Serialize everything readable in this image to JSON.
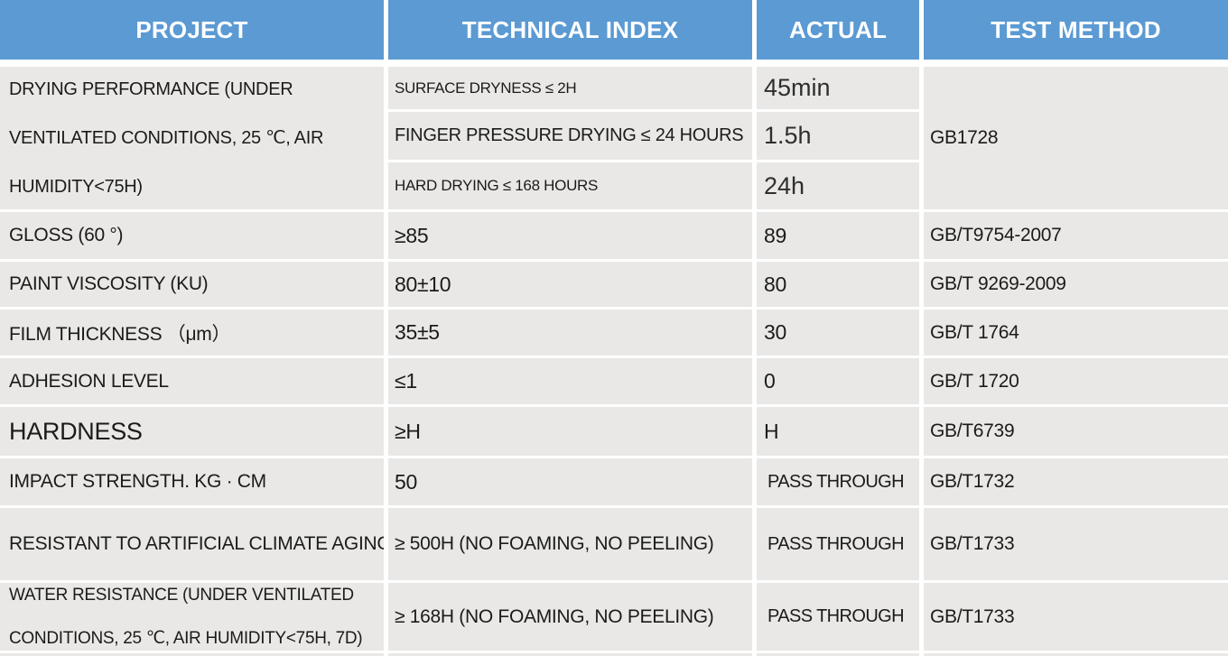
{
  "table": {
    "headers": [
      "PROJECT",
      "TECHNICAL INDEX",
      "ACTUAL",
      "TEST METHOD"
    ],
    "drying_block": {
      "project": "DRYING PERFORMANCE (UNDER VENTILATED CONDITIONS, 25 ℃, AIR HUMIDITY<75H)",
      "method": "GB1728",
      "sub_rows": [
        {
          "index": "SURFACE DRYNESS ≤ 2H",
          "actual": "45min"
        },
        {
          "index": "FINGER PRESSURE DRYING ≤ 24 HOURS",
          "actual": "1.5h"
        },
        {
          "index": "HARD DRYING ≤ 168 HOURS",
          "actual": "24h"
        }
      ]
    },
    "rows": [
      {
        "project": "GLOSS (60 °)",
        "index": "≥85",
        "actual": "89",
        "method": "GB/T9754-2007"
      },
      {
        "project": "PAINT VISCOSITY (KU)",
        "index": "80±10",
        "actual": "80",
        "method": "GB/T 9269-2009"
      },
      {
        "project": "FILM THICKNESS （μm）",
        "index": "35±5",
        "actual": "30",
        "method": "GB/T 1764"
      },
      {
        "project": "ADHESION LEVEL",
        "index": "≤1",
        "actual": "0",
        "method": "GB/T 1720"
      },
      {
        "project": "HARDNESS",
        "index": "≥H",
        "actual": "H",
        "method": "GB/T6739"
      },
      {
        "project": "IMPACT STRENGTH. KG · CM",
        "index": "50",
        "actual": "PASS THROUGH",
        "method": "GB/T1732"
      },
      {
        "project": "RESISTANT TO ARTIFICIAL CLIMATE AGING",
        "index": "≥ 500H (NO FOAMING, NO PEELING)",
        "actual": "PASS THROUGH",
        "method": "GB/T1733"
      },
      {
        "project": "WATER RESISTANCE (UNDER VENTILATED CONDITIONS, 25 ℃, AIR HUMIDITY<75H, 7D)",
        "index": "≥ 168H (NO FOAMING, NO PEELING)",
        "actual": "PASS THROUGH",
        "method": "GB/T1733"
      }
    ],
    "colors": {
      "header_bg": "#5b9ad3",
      "header_text": "#ffffff",
      "cell_bg": "#e9e8e6",
      "text": "#1b1b1b",
      "separator": "#ffffff"
    }
  }
}
